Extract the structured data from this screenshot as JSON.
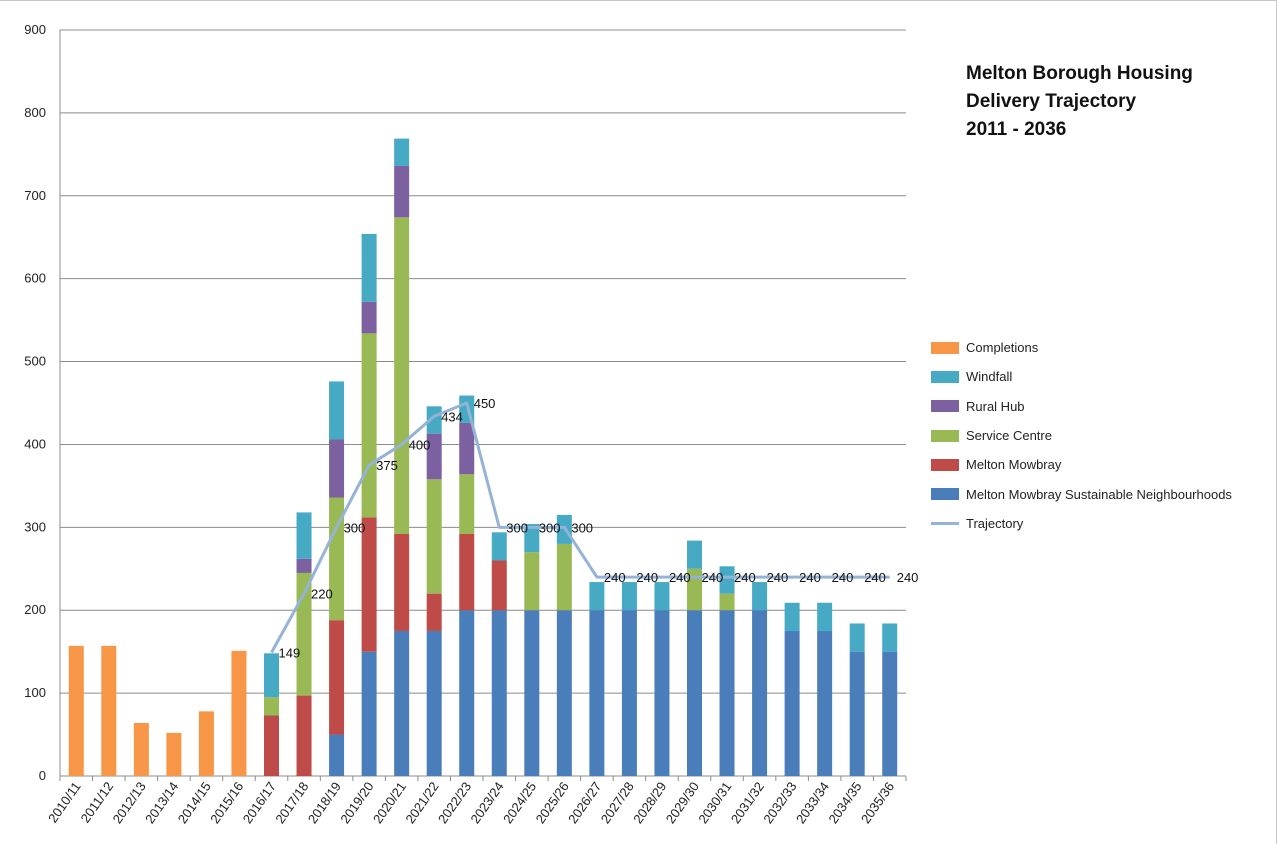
{
  "title_lines": [
    "Melton Borough Housing",
    "Delivery Trajectory",
    "2011 - 2036"
  ],
  "chart_data": {
    "type": "bar",
    "stacked": true,
    "title": "Melton Borough Housing Delivery Trajectory 2011 - 2036",
    "categories": [
      "2010/11",
      "2011/12",
      "2012/13",
      "2013/14",
      "2014/15",
      "2015/16",
      "2016/17",
      "2017/18",
      "2018/19",
      "2019/20",
      "2020/21",
      "2021/22",
      "2022/23",
      "2023/24",
      "2024/25",
      "2025/26",
      "2026/27",
      "2027/28",
      "2028/29",
      "2029/30",
      "2030/31",
      "2031/32",
      "2032/33",
      "2033/34",
      "2034/35",
      "2035/36"
    ],
    "y_ticks": [
      "0",
      "100",
      "200",
      "300",
      "400",
      "500",
      "600",
      "700",
      "800",
      "900"
    ],
    "ylim": [
      0,
      900
    ],
    "grid": true,
    "legend_position": "right",
    "series": [
      {
        "name": "Melton Mowbray Sustainable Neighbourhoods",
        "color": "#4a7ebb",
        "values": [
          0,
          0,
          0,
          0,
          0,
          0,
          0,
          0,
          50,
          150,
          175,
          175,
          200,
          200,
          200,
          200,
          200,
          200,
          200,
          200,
          200,
          200,
          175,
          175,
          150,
          150
        ]
      },
      {
        "name": "Melton Mowbray",
        "color": "#be4b48",
        "values": [
          0,
          0,
          0,
          0,
          0,
          0,
          73,
          97,
          138,
          162,
          117,
          45,
          92,
          60,
          0,
          0,
          0,
          0,
          0,
          0,
          0,
          0,
          0,
          0,
          0,
          0
        ]
      },
      {
        "name": "Service Centre",
        "color": "#98b954",
        "values": [
          0,
          0,
          0,
          0,
          0,
          0,
          22,
          148,
          148,
          222,
          382,
          138,
          72,
          0,
          70,
          80,
          0,
          0,
          0,
          50,
          20,
          0,
          0,
          0,
          0,
          0
        ]
      },
      {
        "name": "Rural Hub",
        "color": "#7d60a0",
        "values": [
          0,
          0,
          0,
          0,
          0,
          0,
          0,
          17,
          70,
          38,
          62,
          55,
          62,
          0,
          0,
          0,
          0,
          0,
          0,
          0,
          0,
          0,
          0,
          0,
          0,
          0
        ]
      },
      {
        "name": "Windfall",
        "color": "#46aac5",
        "values": [
          0,
          0,
          0,
          0,
          0,
          0,
          53,
          56,
          70,
          82,
          33,
          33,
          33,
          34,
          34,
          35,
          34,
          34,
          34,
          34,
          33,
          34,
          34,
          34,
          34,
          34
        ]
      },
      {
        "name": "Completions",
        "color": "#f79646",
        "values": [
          157,
          157,
          64,
          52,
          78,
          151,
          0,
          0,
          0,
          0,
          0,
          0,
          0,
          0,
          0,
          0,
          0,
          0,
          0,
          0,
          0,
          0,
          0,
          0,
          0,
          0
        ]
      }
    ],
    "trajectory": {
      "name": "Trajectory",
      "color": "#95b3d7",
      "values": [
        null,
        null,
        null,
        null,
        null,
        null,
        149,
        220,
        300,
        375,
        400,
        434,
        450,
        300,
        300,
        300,
        240,
        240,
        240,
        240,
        240,
        240,
        240,
        240,
        240,
        240
      ],
      "labels": [
        "",
        "",
        "",
        "",
        "",
        "",
        "149",
        "220",
        "300",
        "375",
        "400",
        "434",
        "450",
        "300",
        "300",
        "300",
        "240",
        "240",
        "240",
        "240",
        "240",
        "240",
        "240",
        "240",
        "240",
        "240"
      ]
    },
    "legend": [
      "Completions",
      "Windfall",
      "Rural Hub",
      "Service Centre",
      "Melton Mowbray",
      "Melton Mowbray Sustainable Neighbourhoods",
      "Trajectory"
    ]
  }
}
